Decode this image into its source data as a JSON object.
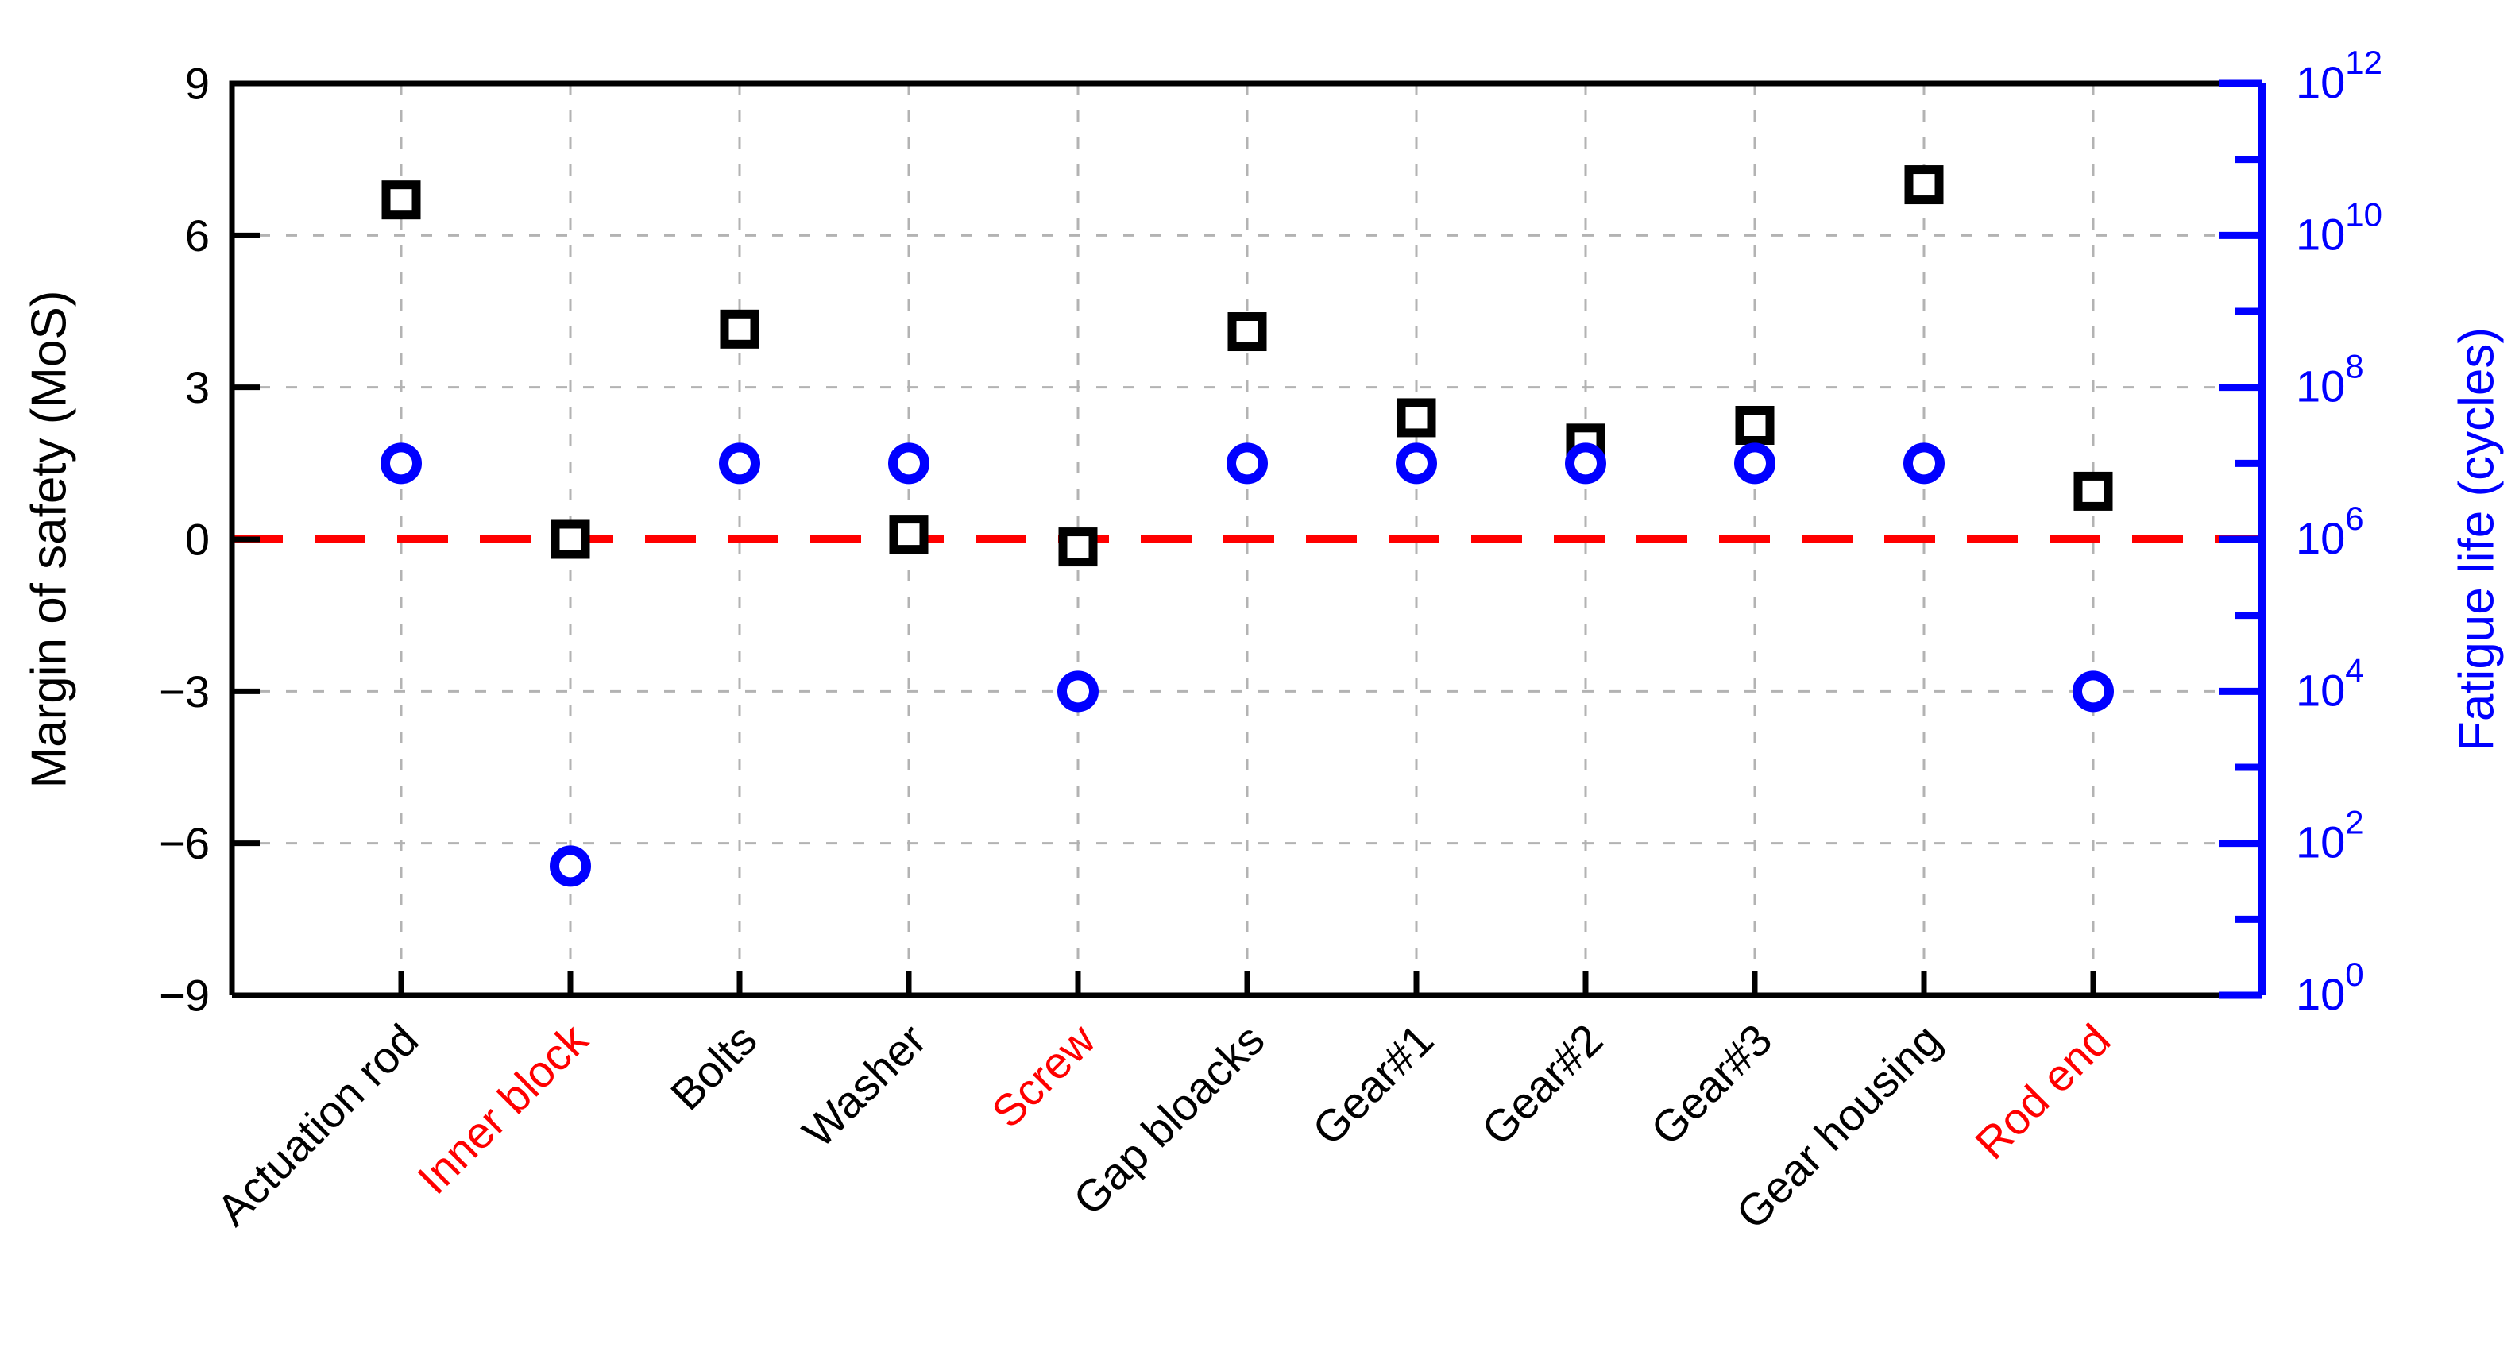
{
  "colors": {
    "background": "#FFFFFF",
    "mos_series": "#000000",
    "fatigue_series": "#0000FF",
    "reference_line": "#FF0000",
    "grid": "#B3B3B3",
    "highlight_label": "#FF0000"
  },
  "chart_data": {
    "type": "scatter",
    "title": "",
    "categories": [
      "Actuation rod",
      "Inner block",
      "Bolts",
      "Washer",
      "Screw",
      "Gap bloacks",
      "Gear#1",
      "Gear#2",
      "Gear#3",
      "Gear housing",
      "Rod end"
    ],
    "category_label_colors": [
      "#000000",
      "#FF0000",
      "#000000",
      "#000000",
      "#FF0000",
      "#000000",
      "#000000",
      "#000000",
      "#000000",
      "#000000",
      "#FF0000"
    ],
    "highlighted_categories": [
      "Inner block",
      "Screw",
      "Rod end"
    ],
    "series": [
      {
        "name": "Margin of safety (MoS)",
        "axis": "left",
        "marker": "open-square",
        "color": "#000000",
        "values": [
          6.7,
          0.0,
          4.15,
          0.1,
          -0.15,
          4.1,
          2.4,
          1.9,
          2.25,
          7.0,
          0.95
        ]
      },
      {
        "name": "Fatigue life (cycles)",
        "axis": "right",
        "marker": "open-circle",
        "color": "#0000FF",
        "cycles": [
          10000000.0,
          50,
          10000000.0,
          10000000.0,
          10000.0,
          10000000.0,
          10000000.0,
          10000000.0,
          10000000.0,
          10000000.0,
          10000.0
        ],
        "log10_values": [
          7.0,
          1.7,
          7.0,
          7.0,
          4.0,
          7.0,
          7.0,
          7.0,
          7.0,
          7.0,
          4.0
        ]
      }
    ],
    "left_axis": {
      "label": "Margin of safety (MoS)",
      "ticks": [
        9,
        6,
        3,
        0,
        -3,
        -6,
        -9
      ],
      "min": -9,
      "max": 9,
      "color": "#000000"
    },
    "right_axis": {
      "label": "Fatigue life (cycles)",
      "scale": "log10",
      "labeled_exponents": [
        12,
        10,
        8,
        6,
        4,
        2,
        0
      ],
      "min_exponent": 0,
      "max_exponent": 12,
      "color": "#0000FF"
    },
    "reference_line": {
      "value": 0,
      "color": "#FF0000",
      "style": "dashed"
    },
    "grid": {
      "style": "dashed",
      "color": "#B3B3B3",
      "horizontal_at": [
        6,
        3,
        -3,
        -6
      ],
      "vertical": "every-category"
    },
    "legend": "none"
  }
}
